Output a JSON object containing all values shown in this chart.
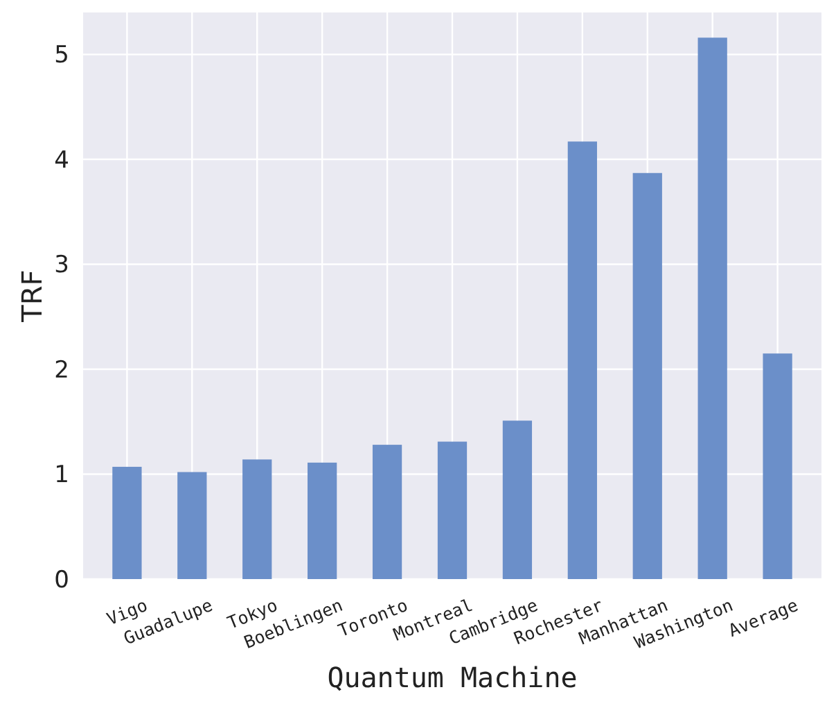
{
  "chart_data": {
    "type": "bar",
    "xlabel": "Quantum Machine",
    "ylabel": "TRF",
    "categories": [
      "Vigo",
      "Guadalupe",
      "Tokyo",
      "Boeblingen",
      "Toronto",
      "Montreal",
      "Cambridge",
      "Rochester",
      "Manhattan",
      "Washington",
      "Average"
    ],
    "values": [
      1.07,
      1.02,
      1.14,
      1.11,
      1.28,
      1.31,
      1.51,
      4.17,
      3.87,
      5.16,
      2.15
    ],
    "color": "#6b8fc9",
    "ylim": [
      0,
      5.4
    ],
    "yticks": [
      0,
      1,
      2,
      3,
      4,
      5
    ],
    "grid": true
  }
}
